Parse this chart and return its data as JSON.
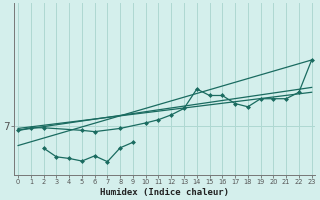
{
  "xlabel": "Humidex (Indice chaleur)",
  "background_color": "#d4efec",
  "line_color": "#1a6b60",
  "grid_color": "#aed8d2",
  "x_ticks": [
    0,
    1,
    2,
    3,
    4,
    5,
    6,
    7,
    8,
    9,
    10,
    11,
    12,
    13,
    14,
    15,
    16,
    17,
    18,
    19,
    20,
    21,
    22,
    23
  ],
  "y_tick_val": 7,
  "xlim": [
    -0.3,
    23.3
  ],
  "ylim": [
    5.5,
    10.8
  ],
  "series1_x": [
    0,
    1,
    2,
    5,
    6,
    8,
    10,
    11,
    12,
    13,
    14,
    15,
    16,
    17,
    18,
    19,
    20,
    21,
    22,
    23
  ],
  "series1_y": [
    6.87,
    6.95,
    6.95,
    6.87,
    6.83,
    6.93,
    7.1,
    7.2,
    7.35,
    7.55,
    8.15,
    7.95,
    7.95,
    7.7,
    7.6,
    7.85,
    7.85,
    7.85,
    8.05,
    9.05
  ],
  "series2_x": [
    2,
    3,
    4,
    5,
    6,
    7,
    8,
    9
  ],
  "series2_y": [
    6.32,
    6.05,
    6.0,
    5.92,
    6.08,
    5.9,
    6.33,
    6.5
  ],
  "trend1_x": [
    0,
    23
  ],
  "trend1_y": [
    6.4,
    9.05
  ],
  "trend2_x": [
    0,
    23
  ],
  "trend2_y": [
    6.87,
    8.2
  ],
  "trend3_x": [
    0,
    23
  ],
  "trend3_y": [
    6.93,
    8.05
  ]
}
